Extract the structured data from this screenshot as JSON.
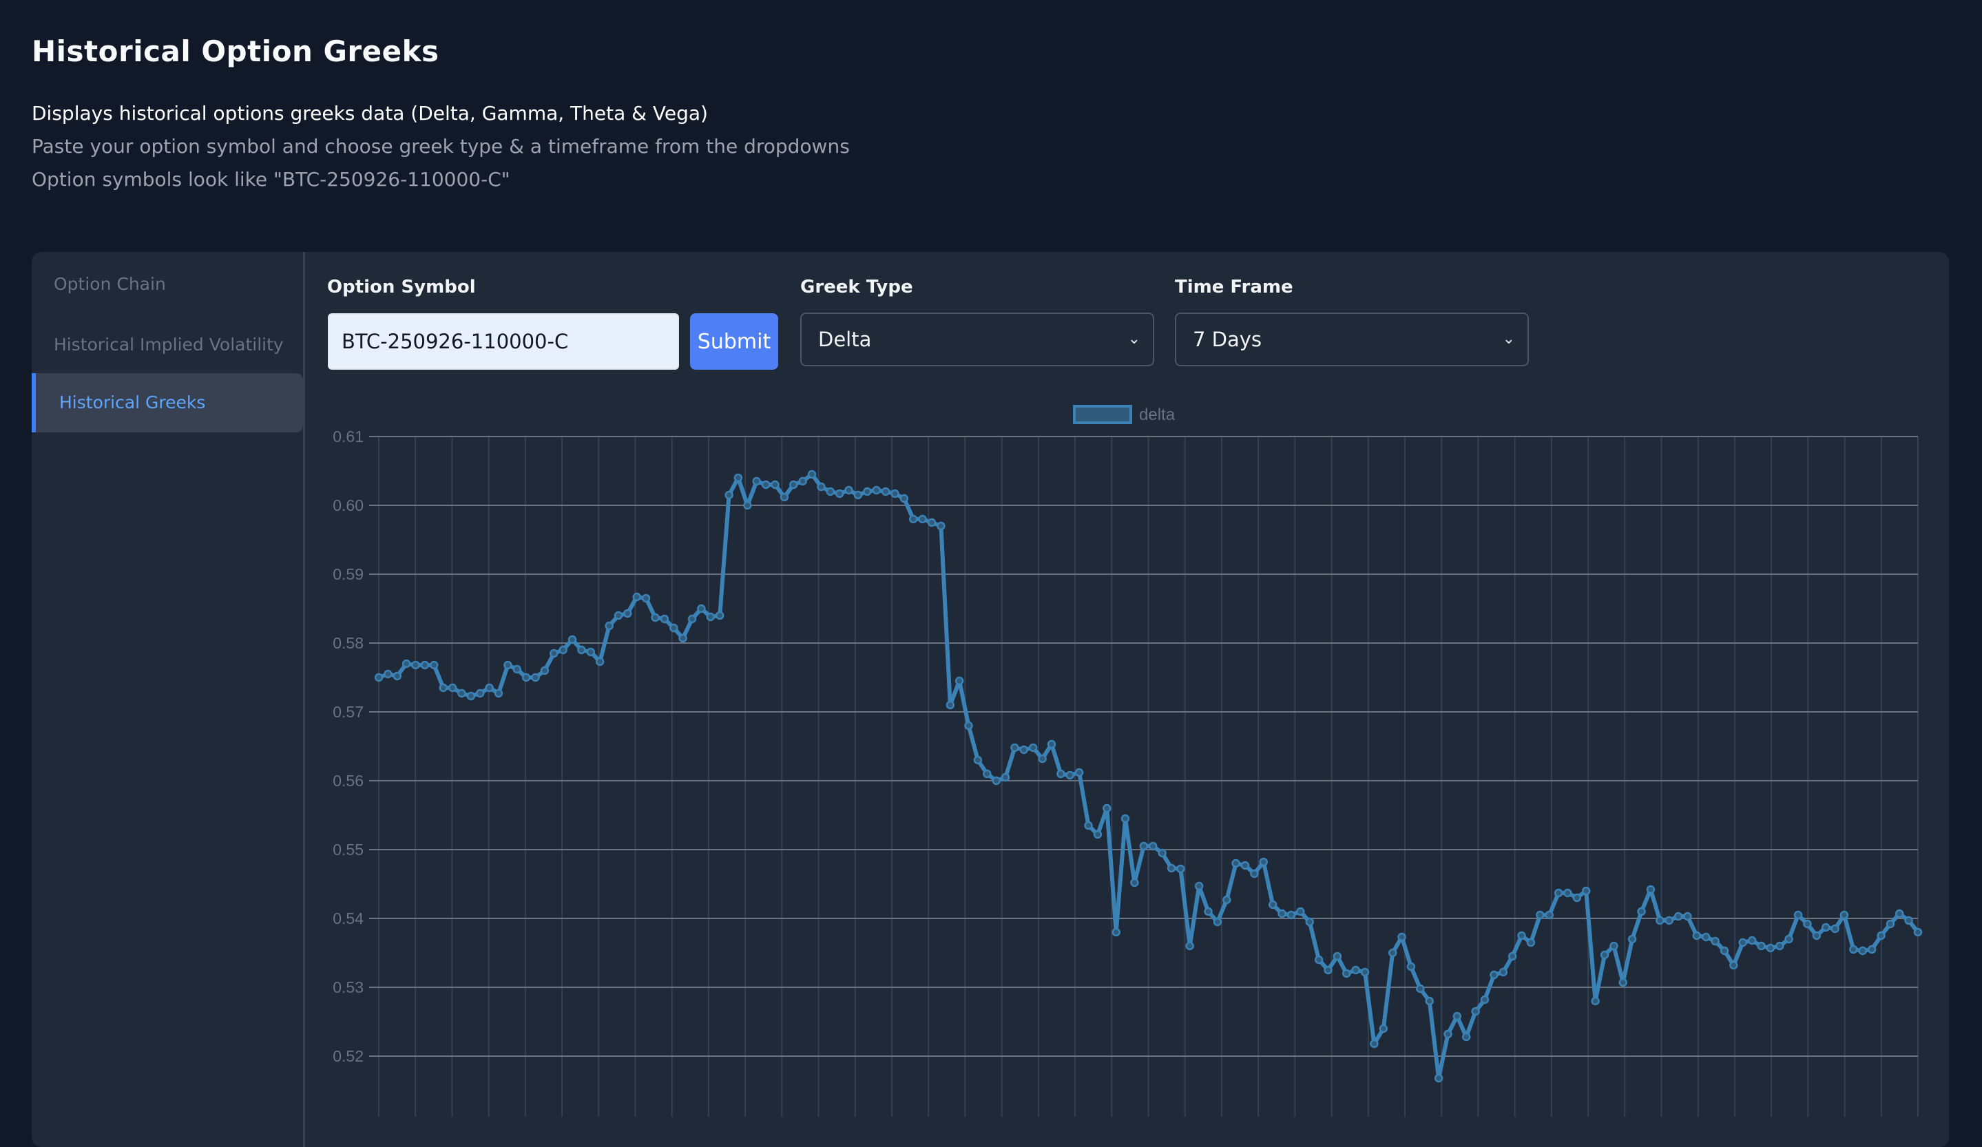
{
  "page": {
    "title": "Historical Option Greeks",
    "description_lines": [
      "Displays historical options greeks data (Delta, Gamma, Theta & Vega)",
      "Paste your option symbol and choose greek type & a timeframe from the dropdowns",
      "Option symbols look like \"BTC-250926-110000-C\""
    ]
  },
  "sidebar": {
    "items": [
      {
        "label": "Option Chain",
        "active": false
      },
      {
        "label": "Historical Implied Volatility",
        "active": false
      },
      {
        "label": "Historical Greeks",
        "active": true
      }
    ]
  },
  "form": {
    "symbol_label": "Option Symbol",
    "symbol_value": "BTC-250926-110000-C",
    "submit_label": "Submit",
    "greek_label": "Greek Type",
    "greek_value": "Delta",
    "timeframe_label": "Time Frame",
    "timeframe_value": "7 Days",
    "chevron_icon": "chevron-down-icon"
  },
  "colors": {
    "background": "#111827",
    "panel": "#1f2937",
    "accent": "#4f7ff5",
    "series": "#3b82b6",
    "active_text": "#60a5fa"
  },
  "chart_data": {
    "type": "line",
    "legend": [
      "delta"
    ],
    "legend_position": "top-center",
    "grid": true,
    "ylim": [
      0.51,
      0.61
    ],
    "y_ticks": [
      "0.61",
      "0.60",
      "0.59",
      "0.58",
      "0.57",
      "0.56",
      "0.55",
      "0.54",
      "0.53",
      "0.52"
    ],
    "series": [
      {
        "name": "delta",
        "values": [
          0.575,
          0.5755,
          0.5752,
          0.577,
          0.5768,
          0.5768,
          0.5768,
          0.5735,
          0.5735,
          0.5727,
          0.5723,
          0.5727,
          0.5735,
          0.5727,
          0.5768,
          0.5762,
          0.575,
          0.575,
          0.576,
          0.5785,
          0.579,
          0.5805,
          0.579,
          0.5787,
          0.5773,
          0.5825,
          0.584,
          0.5843,
          0.5867,
          0.5865,
          0.5837,
          0.5835,
          0.5822,
          0.5807,
          0.5835,
          0.585,
          0.5838,
          0.584,
          0.6015,
          0.604,
          0.6,
          0.6035,
          0.603,
          0.603,
          0.6012,
          0.603,
          0.6035,
          0.6045,
          0.6027,
          0.602,
          0.6017,
          0.6022,
          0.6015,
          0.602,
          0.6022,
          0.602,
          0.6017,
          0.601,
          0.598,
          0.598,
          0.5975,
          0.597,
          0.571,
          0.5745,
          0.568,
          0.563,
          0.561,
          0.56,
          0.5605,
          0.5648,
          0.5645,
          0.5648,
          0.5632,
          0.5653,
          0.561,
          0.5608,
          0.5612,
          0.5535,
          0.5522,
          0.556,
          0.538,
          0.5545,
          0.5452,
          0.5505,
          0.5505,
          0.5495,
          0.5473,
          0.5472,
          0.536,
          0.5447,
          0.541,
          0.5395,
          0.5427,
          0.548,
          0.5477,
          0.5465,
          0.5482,
          0.542,
          0.5407,
          0.5405,
          0.541,
          0.5395,
          0.534,
          0.5325,
          0.5345,
          0.532,
          0.5325,
          0.5322,
          0.5218,
          0.524,
          0.535,
          0.5373,
          0.533,
          0.5298,
          0.528,
          0.5168,
          0.5232,
          0.5258,
          0.5228,
          0.5265,
          0.5282,
          0.5318,
          0.5322,
          0.5345,
          0.5375,
          0.5365,
          0.5405,
          0.5405,
          0.5437,
          0.5437,
          0.543,
          0.544,
          0.528,
          0.5347,
          0.536,
          0.5307,
          0.537,
          0.541,
          0.5442,
          0.5397,
          0.5397,
          0.5403,
          0.5403,
          0.5375,
          0.5373,
          0.5367,
          0.5353,
          0.5332,
          0.5365,
          0.5368,
          0.536,
          0.5357,
          0.536,
          0.537,
          0.5405,
          0.5392,
          0.5375,
          0.5387,
          0.5385,
          0.5405,
          0.5355,
          0.5353,
          0.5355,
          0.5375,
          0.5392,
          0.5407,
          0.5397,
          0.538
        ]
      }
    ]
  }
}
